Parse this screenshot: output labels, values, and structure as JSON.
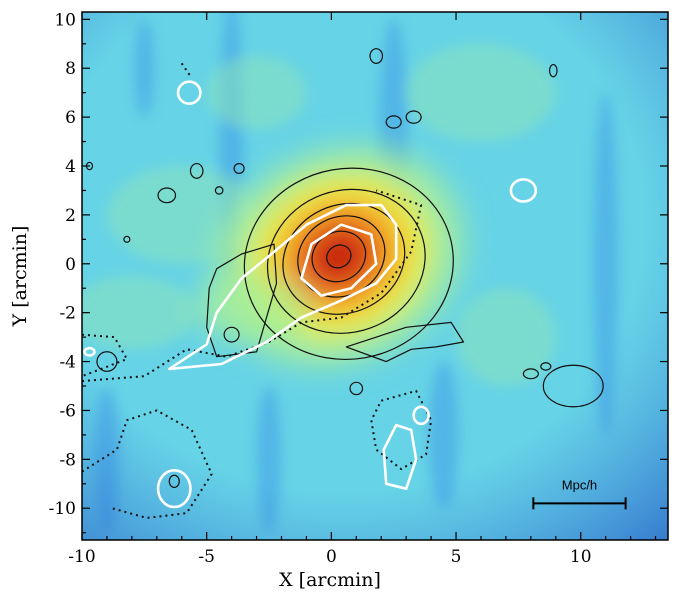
{
  "chart_data": {
    "type": "heatmap",
    "title": "",
    "xlabel": "X [arcmin]",
    "ylabel": "Y [arcmin]",
    "xlim": [
      -10,
      13.5
    ],
    "ylim": [
      -11.3,
      10.3
    ],
    "x_ticks": [
      -10,
      -5,
      0,
      5,
      10
    ],
    "y_ticks": [
      -10,
      -8,
      -6,
      -4,
      -2,
      0,
      2,
      4,
      6,
      8,
      10
    ],
    "colormap": [
      "#1f5fd1",
      "#3aa6ee",
      "#5ed8e6",
      "#a7ef9a",
      "#f2ef3c",
      "#f5b52a",
      "#ea5a1a",
      "#c21b10"
    ],
    "peak": {
      "x": 0.3,
      "y": 0.3
    },
    "grid": false,
    "legend": "none",
    "scale_bar": {
      "label": "Mpc/h",
      "x_start": 8.1,
      "x_end": 11.8,
      "y": -9.8
    },
    "contours": {
      "black_solid_levels": [
        {
          "cx": 0.7,
          "cy": 0.0,
          "rx": 4.2,
          "ry": 3.9,
          "rot": -10
        },
        {
          "cx": 0.6,
          "cy": 0.1,
          "rx": 3.2,
          "ry": 2.9,
          "rot": -20
        },
        {
          "cx": 0.5,
          "cy": 0.2,
          "rx": 2.5,
          "ry": 2.2,
          "rot": -25
        },
        {
          "cx": 0.4,
          "cy": 0.3,
          "rx": 1.8,
          "ry": 1.6,
          "rot": -30
        },
        {
          "cx": 0.3,
          "cy": 0.3,
          "rx": 1.1,
          "ry": 1.0,
          "rot": -30
        },
        {
          "cx": 0.3,
          "cy": 0.3,
          "rx": 0.5,
          "ry": 0.45,
          "rot": -30
        }
      ],
      "black_solid_small": [
        {
          "cx": 1.8,
          "cy": 8.5,
          "rx": 0.25,
          "ry": 0.3
        },
        {
          "cx": 2.5,
          "cy": 5.8,
          "rx": 0.3,
          "ry": 0.25
        },
        {
          "cx": 3.3,
          "cy": 6.0,
          "rx": 0.3,
          "ry": 0.25
        },
        {
          "cx": -5.4,
          "cy": 3.8,
          "rx": 0.25,
          "ry": 0.3
        },
        {
          "cx": -3.7,
          "cy": 3.9,
          "rx": 0.2,
          "ry": 0.2
        },
        {
          "cx": -6.6,
          "cy": 2.8,
          "rx": 0.35,
          "ry": 0.3
        },
        {
          "cx": -4.5,
          "cy": 3.0,
          "rx": 0.15,
          "ry": 0.15
        },
        {
          "cx": -8.2,
          "cy": 1.0,
          "rx": 0.12,
          "ry": 0.12
        },
        {
          "cx": -9.7,
          "cy": 4.0,
          "rx": 0.12,
          "ry": 0.15
        },
        {
          "cx": 8.9,
          "cy": 7.9,
          "rx": 0.15,
          "ry": 0.25
        },
        {
          "cx": 9.7,
          "cy": -5.0,
          "rx": 1.2,
          "ry": 0.85
        },
        {
          "cx": 8.0,
          "cy": -4.5,
          "rx": 0.3,
          "ry": 0.2
        },
        {
          "cx": 8.6,
          "cy": -4.2,
          "rx": 0.2,
          "ry": 0.15
        },
        {
          "cx": 1.0,
          "cy": -5.1,
          "rx": 0.25,
          "ry": 0.25
        },
        {
          "cx": -9.0,
          "cy": -4.0,
          "rx": 0.4,
          "ry": 0.4
        },
        {
          "cx": -4.0,
          "cy": -2.9,
          "rx": 0.3,
          "ry": 0.3
        },
        {
          "cx": -6.3,
          "cy": -8.9,
          "rx": 0.2,
          "ry": 0.25
        }
      ],
      "white_solid": [
        {
          "cx": -5.7,
          "cy": 7.0,
          "rx": 0.45,
          "ry": 0.45
        },
        {
          "cx": 7.7,
          "cy": 3.0,
          "rx": 0.5,
          "ry": 0.45
        },
        {
          "cx": 3.6,
          "cy": -6.2,
          "rx": 0.3,
          "ry": 0.35
        },
        {
          "cx": -6.3,
          "cy": -9.2,
          "rx": 0.65,
          "ry": 0.75
        },
        {
          "cx": -9.7,
          "cy": -3.6,
          "rx": 0.2,
          "ry": 0.15
        }
      ]
    }
  }
}
